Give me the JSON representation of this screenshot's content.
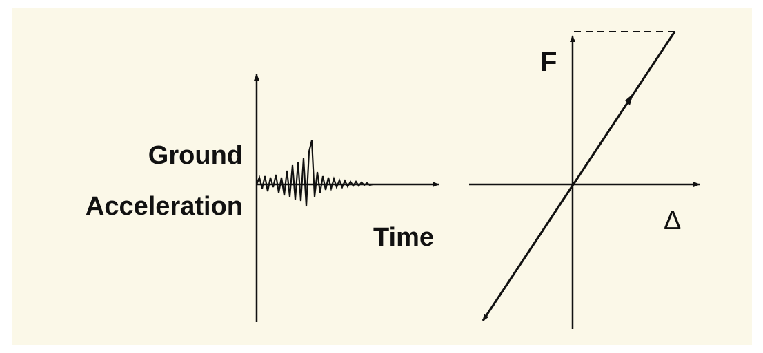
{
  "colors": {
    "background": "#fbf8e8",
    "ink": "#111111"
  },
  "left_plot": {
    "ylabel_line1": "Ground",
    "ylabel_line2": "Acceleration",
    "xlabel": "Time"
  },
  "right_plot": {
    "ylabel": "F",
    "xlabel": "Δ"
  }
}
